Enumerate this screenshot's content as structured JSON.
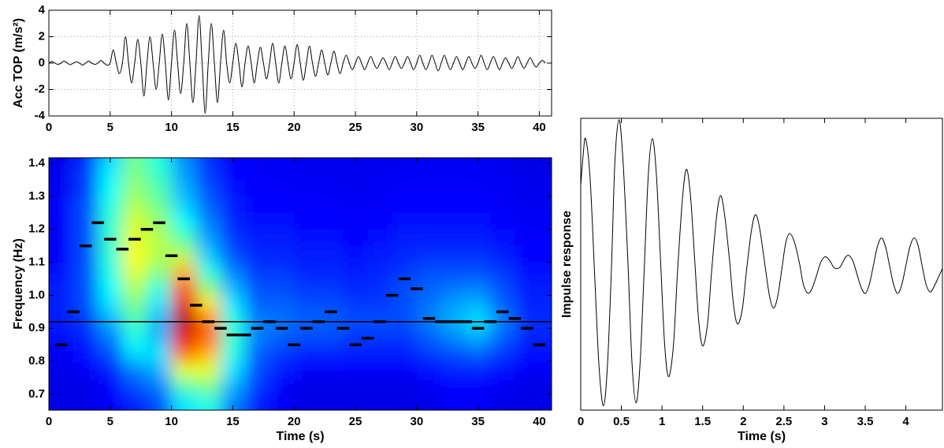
{
  "chart_data": [
    {
      "type": "line",
      "ylabel": "Acc TOP (m/s²)",
      "color": "#000000",
      "grid": true,
      "xlim": [
        0,
        41
      ],
      "ylim": [
        -4,
        4
      ],
      "xticks": [
        0,
        5,
        10,
        15,
        20,
        25,
        30,
        35,
        40
      ],
      "yticks": [
        -4,
        -2,
        0,
        2,
        4
      ],
      "x": [
        0,
        0.25,
        0.5,
        0.75,
        1,
        1.25,
        1.5,
        1.75,
        2,
        2.25,
        2.5,
        2.75,
        3,
        3.25,
        3.5,
        3.75,
        4,
        4.25,
        4.5,
        4.75,
        5,
        5.25,
        5.5,
        5.75,
        6,
        6.25,
        6.5,
        6.75,
        7,
        7.25,
        7.5,
        7.75,
        8,
        8.25,
        8.5,
        8.75,
        9,
        9.25,
        9.5,
        9.75,
        10,
        10.25,
        10.5,
        10.75,
        11,
        11.25,
        11.5,
        11.75,
        12,
        12.25,
        12.5,
        12.75,
        13,
        13.25,
        13.5,
        13.75,
        14,
        14.25,
        14.5,
        14.75,
        15,
        15.25,
        15.5,
        15.75,
        16,
        16.25,
        16.5,
        16.75,
        17,
        17.25,
        17.5,
        17.75,
        18,
        18.25,
        18.5,
        18.75,
        19,
        19.25,
        19.5,
        19.75,
        20,
        20.25,
        20.5,
        20.75,
        21,
        21.25,
        21.5,
        21.75,
        22,
        22.25,
        22.5,
        22.75,
        23,
        23.25,
        23.5,
        23.75,
        24,
        24.25,
        24.5,
        24.75,
        25,
        25.25,
        25.5,
        25.75,
        26,
        26.25,
        26.5,
        26.75,
        27,
        27.25,
        27.5,
        27.75,
        28,
        28.25,
        28.5,
        28.75,
        29,
        29.25,
        29.5,
        29.75,
        30,
        30.25,
        30.5,
        30.75,
        31,
        31.25,
        31.5,
        31.75,
        32,
        32.25,
        32.5,
        32.75,
        33,
        33.25,
        33.5,
        33.75,
        34,
        34.25,
        34.5,
        34.75,
        35,
        35.25,
        35.5,
        35.75,
        36,
        36.25,
        36.5,
        36.75,
        37,
        37.25,
        37.5,
        37.75,
        38,
        38.25,
        38.5,
        38.75,
        39,
        39.25,
        39.5,
        39.75,
        40,
        40.25,
        40.5
      ],
      "values": [
        0,
        0.12,
        0,
        -0.1,
        0,
        0.15,
        0,
        -0.12,
        0,
        0.1,
        0,
        -0.15,
        0,
        0.15,
        0,
        -0.1,
        0,
        0.2,
        0,
        -0.15,
        0,
        1.0,
        0,
        -0.8,
        0,
        2.0,
        0,
        -1.5,
        0,
        1.8,
        0,
        -2.5,
        0,
        2.0,
        0,
        -2.0,
        0,
        2.2,
        0,
        -2.8,
        0,
        2.5,
        0,
        -2.3,
        0,
        3.0,
        0,
        -3.0,
        0,
        3.6,
        0,
        -3.8,
        0,
        3.0,
        0,
        -3.0,
        0,
        2.5,
        0,
        -1.5,
        0,
        1.5,
        0,
        -1.8,
        0,
        1.3,
        0,
        -1.5,
        0,
        1.2,
        0,
        -1.2,
        0,
        1.5,
        0,
        -1.5,
        0,
        1.3,
        0,
        -1.2,
        0,
        1.4,
        0,
        -1.3,
        0,
        1.3,
        0,
        -1.0,
        0,
        1.0,
        0,
        -0.9,
        0,
        0.9,
        0,
        -0.8,
        0,
        0.6,
        0,
        -0.5,
        0,
        0.5,
        0,
        -0.5,
        0,
        0.5,
        0,
        -0.4,
        0,
        0.4,
        0,
        -0.5,
        0,
        0.5,
        0,
        -0.4,
        0,
        0.5,
        0,
        -0.5,
        0,
        0.6,
        0,
        -0.5,
        0,
        0.6,
        0,
        -0.6,
        0,
        0.6,
        0,
        -0.5,
        0,
        0.5,
        0,
        -0.5,
        0,
        0.5,
        0,
        -0.4,
        0,
        0.6,
        0,
        -0.5,
        0,
        0.5,
        0,
        -0.5,
        0,
        0.4,
        0,
        -0.4,
        0,
        0.5,
        0,
        -0.4,
        0,
        0.4,
        0,
        -0.3,
        0,
        0.2,
        0
      ]
    },
    {
      "type": "heatmap",
      "xlabel": "Time (s)",
      "ylabel": "Frequency (Hz)",
      "colormap": "jet",
      "xlim": [
        0,
        41
      ],
      "ylim": [
        0.652,
        1.417
      ],
      "xticks": [
        0,
        5,
        10,
        15,
        20,
        25,
        30,
        35,
        40
      ],
      "yticks": [
        0.7,
        0.8,
        0.9,
        {
          "value": 1,
          "label": "1.0"
        },
        1.1,
        1.2,
        1.3,
        1.4
      ],
      "x": [
        1,
        3,
        5,
        7,
        9,
        11,
        13,
        15,
        17,
        19,
        21,
        23,
        25,
        27,
        29,
        31,
        33,
        35,
        37,
        39
      ],
      "y": [
        0.675,
        0.725,
        0.775,
        0.825,
        0.875,
        0.925,
        0.975,
        1.025,
        1.075,
        1.125,
        1.175,
        1.225,
        1.275,
        1.325,
        1.375,
        1.425
      ],
      "z": [
        [
          0.1,
          0.1,
          0.12,
          0.15,
          0.2,
          0.35,
          0.4,
          0.25,
          0.15,
          0.12,
          0.1,
          0.1,
          0.1,
          0.1,
          0.1,
          0.1,
          0.12,
          0.12,
          0.1,
          0.1
        ],
        [
          0.1,
          0.1,
          0.13,
          0.2,
          0.25,
          0.45,
          0.5,
          0.3,
          0.18,
          0.12,
          0.1,
          0.1,
          0.1,
          0.1,
          0.1,
          0.12,
          0.13,
          0.13,
          0.12,
          0.1
        ],
        [
          0.1,
          0.12,
          0.15,
          0.25,
          0.3,
          0.6,
          0.6,
          0.35,
          0.2,
          0.15,
          0.12,
          0.12,
          0.12,
          0.12,
          0.12,
          0.14,
          0.16,
          0.16,
          0.14,
          0.12
        ],
        [
          0.12,
          0.14,
          0.2,
          0.35,
          0.35,
          0.78,
          0.7,
          0.4,
          0.22,
          0.18,
          0.16,
          0.16,
          0.15,
          0.15,
          0.15,
          0.18,
          0.2,
          0.22,
          0.18,
          0.14
        ],
        [
          0.14,
          0.16,
          0.25,
          0.4,
          0.3,
          0.9,
          0.78,
          0.42,
          0.25,
          0.22,
          0.2,
          0.2,
          0.18,
          0.18,
          0.18,
          0.22,
          0.26,
          0.3,
          0.22,
          0.16
        ],
        [
          0.15,
          0.18,
          0.3,
          0.45,
          0.3,
          0.95,
          0.75,
          0.4,
          0.25,
          0.24,
          0.22,
          0.22,
          0.2,
          0.2,
          0.2,
          0.25,
          0.3,
          0.35,
          0.25,
          0.17
        ],
        [
          0.15,
          0.2,
          0.35,
          0.5,
          0.35,
          0.9,
          0.65,
          0.35,
          0.22,
          0.22,
          0.2,
          0.2,
          0.18,
          0.18,
          0.2,
          0.24,
          0.28,
          0.3,
          0.22,
          0.16
        ],
        [
          0.15,
          0.2,
          0.38,
          0.55,
          0.4,
          0.8,
          0.5,
          0.3,
          0.2,
          0.2,
          0.18,
          0.18,
          0.16,
          0.17,
          0.2,
          0.22,
          0.24,
          0.25,
          0.2,
          0.15
        ],
        [
          0.14,
          0.2,
          0.4,
          0.6,
          0.5,
          0.7,
          0.4,
          0.25,
          0.18,
          0.18,
          0.16,
          0.16,
          0.15,
          0.16,
          0.18,
          0.2,
          0.2,
          0.2,
          0.18,
          0.14
        ],
        [
          0.13,
          0.2,
          0.42,
          0.62,
          0.55,
          0.55,
          0.32,
          0.2,
          0.16,
          0.16,
          0.15,
          0.15,
          0.14,
          0.15,
          0.16,
          0.17,
          0.17,
          0.17,
          0.15,
          0.13
        ],
        [
          0.12,
          0.2,
          0.42,
          0.6,
          0.55,
          0.45,
          0.28,
          0.18,
          0.15,
          0.15,
          0.14,
          0.14,
          0.13,
          0.14,
          0.15,
          0.15,
          0.15,
          0.15,
          0.14,
          0.12
        ],
        [
          0.12,
          0.2,
          0.42,
          0.58,
          0.52,
          0.38,
          0.25,
          0.16,
          0.14,
          0.14,
          0.13,
          0.13,
          0.12,
          0.13,
          0.14,
          0.14,
          0.14,
          0.14,
          0.13,
          0.12
        ],
        [
          0.12,
          0.2,
          0.4,
          0.55,
          0.48,
          0.33,
          0.22,
          0.15,
          0.13,
          0.13,
          0.12,
          0.12,
          0.12,
          0.12,
          0.13,
          0.13,
          0.13,
          0.13,
          0.12,
          0.11
        ],
        [
          0.11,
          0.18,
          0.38,
          0.52,
          0.45,
          0.3,
          0.2,
          0.14,
          0.12,
          0.12,
          0.12,
          0.12,
          0.11,
          0.12,
          0.12,
          0.12,
          0.12,
          0.12,
          0.12,
          0.11
        ],
        [
          0.11,
          0.18,
          0.36,
          0.5,
          0.42,
          0.28,
          0.18,
          0.13,
          0.12,
          0.12,
          0.11,
          0.11,
          0.11,
          0.11,
          0.12,
          0.12,
          0.12,
          0.12,
          0.11,
          0.1
        ],
        [
          0.1,
          0.16,
          0.33,
          0.48,
          0.4,
          0.26,
          0.17,
          0.13,
          0.12,
          0.11,
          0.11,
          0.11,
          0.11,
          0.11,
          0.11,
          0.11,
          0.11,
          0.11,
          0.11,
          0.1
        ]
      ],
      "ridge": {
        "color": "#000000",
        "x": [
          1,
          2,
          3,
          4,
          5,
          6,
          7,
          8,
          9,
          10,
          11,
          12,
          13,
          14,
          15,
          16,
          17,
          18,
          19,
          20,
          21,
          22,
          23,
          24,
          25,
          26,
          27,
          28,
          29,
          30,
          31,
          32,
          33,
          34,
          35,
          36,
          37,
          38,
          39,
          40
        ],
        "values": [
          0.85,
          0.95,
          1.15,
          1.22,
          1.17,
          1.14,
          1.17,
          1.2,
          1.22,
          1.12,
          1.05,
          0.97,
          0.92,
          0.9,
          0.88,
          0.88,
          0.9,
          0.92,
          0.9,
          0.85,
          0.9,
          0.92,
          0.95,
          0.9,
          0.85,
          0.87,
          0.92,
          1.0,
          1.05,
          1.02,
          0.93,
          0.92,
          0.92,
          0.92,
          0.9,
          0.92,
          0.95,
          0.93,
          0.9,
          0.85
        ]
      },
      "reference_line": 0.92
    },
    {
      "type": "line",
      "xlabel": "Time (s)",
      "ylabel": "Impulse response",
      "color": "#000000",
      "grid": false,
      "xlim": [
        0,
        4.45
      ],
      "ylim": [
        -1,
        1
      ],
      "xticks": [
        0,
        0.5,
        1,
        1.5,
        2,
        2.5,
        3,
        3.5,
        4
      ],
      "x": [
        0,
        0.03,
        0.06,
        0.115,
        0.17,
        0.225,
        0.28,
        0.33,
        0.38,
        0.42,
        0.47,
        0.52,
        0.58,
        0.63,
        0.68,
        0.73,
        0.78,
        0.83,
        0.88,
        0.93,
        0.98,
        1.03,
        1.08,
        1.14,
        1.19,
        1.25,
        1.3,
        1.35,
        1.4,
        1.45,
        1.5,
        1.56,
        1.61,
        1.67,
        1.72,
        1.77,
        1.83,
        1.88,
        1.93,
        1.99,
        2.04,
        2.1,
        2.15,
        2.2,
        2.26,
        2.32,
        2.37,
        2.42,
        2.47,
        2.52,
        2.57,
        2.63,
        2.69,
        2.74,
        2.8,
        2.85,
        2.9,
        2.95,
        3.0,
        3.04,
        3.08,
        3.11,
        3.15,
        3.19,
        3.23,
        3.26,
        3.3,
        3.35,
        3.4,
        3.45,
        3.5,
        3.55,
        3.6,
        3.65,
        3.7,
        3.75,
        3.8,
        3.85,
        3.9,
        3.95,
        4.0,
        4.05,
        4.1,
        4.15,
        4.2,
        4.25,
        4.3,
        4.35,
        4.4,
        4.45
      ],
      "values": [
        0.54,
        0.75,
        0.86,
        0.59,
        -0.06,
        -0.7,
        -0.97,
        -0.68,
        0.01,
        0.7,
        0.99,
        0.71,
        0.02,
        -0.67,
        -0.95,
        -0.68,
        -0.05,
        0.6,
        0.86,
        0.62,
        0.05,
        -0.53,
        -0.77,
        -0.56,
        -0.06,
        0.44,
        0.65,
        0.47,
        0.05,
        -0.38,
        -0.56,
        -0.41,
        -0.05,
        0.32,
        0.47,
        0.34,
        0.03,
        -0.28,
        -0.41,
        -0.3,
        -0.04,
        0.23,
        0.34,
        0.25,
        0.02,
        -0.21,
        -0.3,
        -0.23,
        -0.05,
        0.14,
        0.21,
        0.15,
        0.01,
        -0.14,
        -0.2,
        -0.16,
        -0.08,
        0.01,
        0.05,
        0.04,
        0.01,
        -0.02,
        -0.03,
        -0.02,
        0.02,
        0.05,
        0.06,
        0.02,
        -0.07,
        -0.16,
        -0.2,
        -0.14,
        -0.01,
        0.12,
        0.18,
        0.12,
        -0.01,
        -0.14,
        -0.2,
        -0.14,
        -0.01,
        0.12,
        0.18,
        0.13,
        -0.01,
        -0.14,
        -0.19,
        -0.15,
        -0.09,
        -0.03
      ]
    }
  ]
}
